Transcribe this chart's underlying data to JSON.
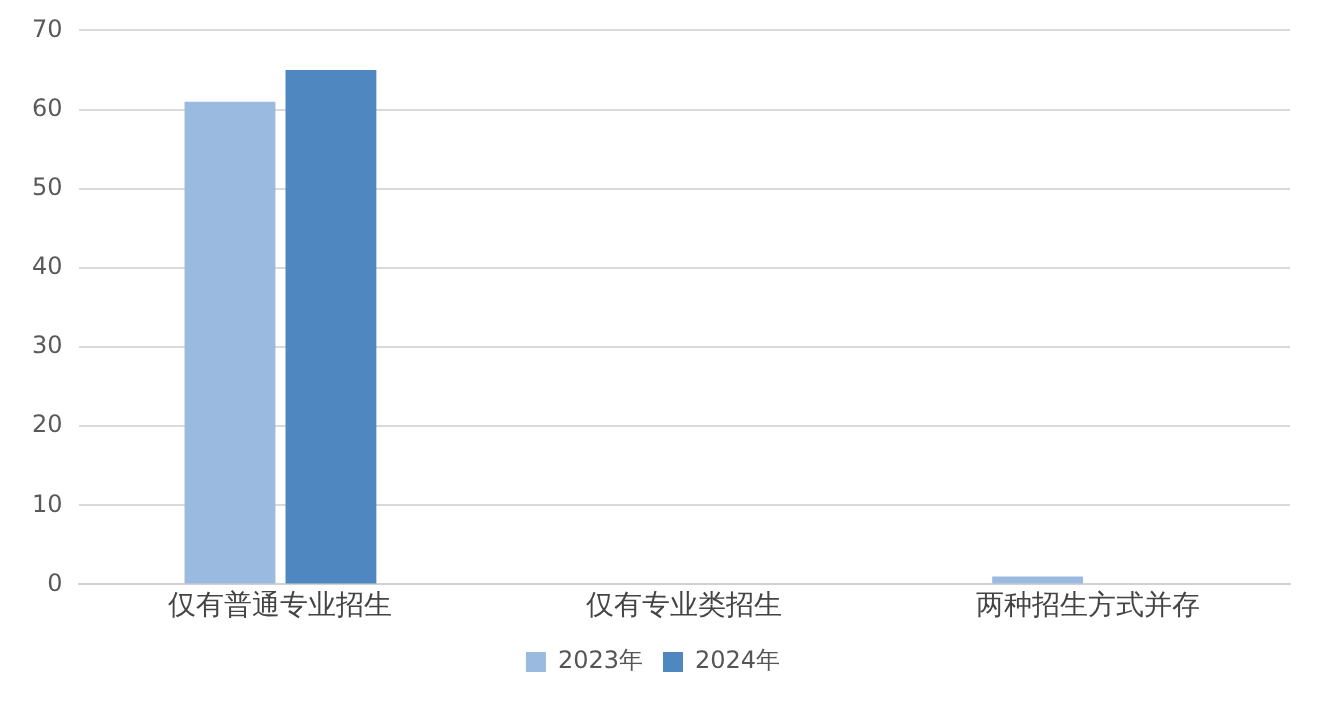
{
  "chart_data": {
    "type": "bar",
    "categories": [
      "仅有普通专业招生",
      "仅有专业类招生",
      "两种招生方式并存"
    ],
    "series": [
      {
        "name": "2023年",
        "color": "#9bbae0",
        "values": [
          61,
          0,
          1
        ]
      },
      {
        "name": "2024年",
        "color": "#4f88c0",
        "values": [
          65,
          0,
          0
        ]
      }
    ],
    "ylim": [
      0,
      70
    ],
    "yticks": [
      0,
      10,
      20,
      30,
      40,
      50,
      60,
      70
    ],
    "grid": "y",
    "legend": "bottom"
  }
}
